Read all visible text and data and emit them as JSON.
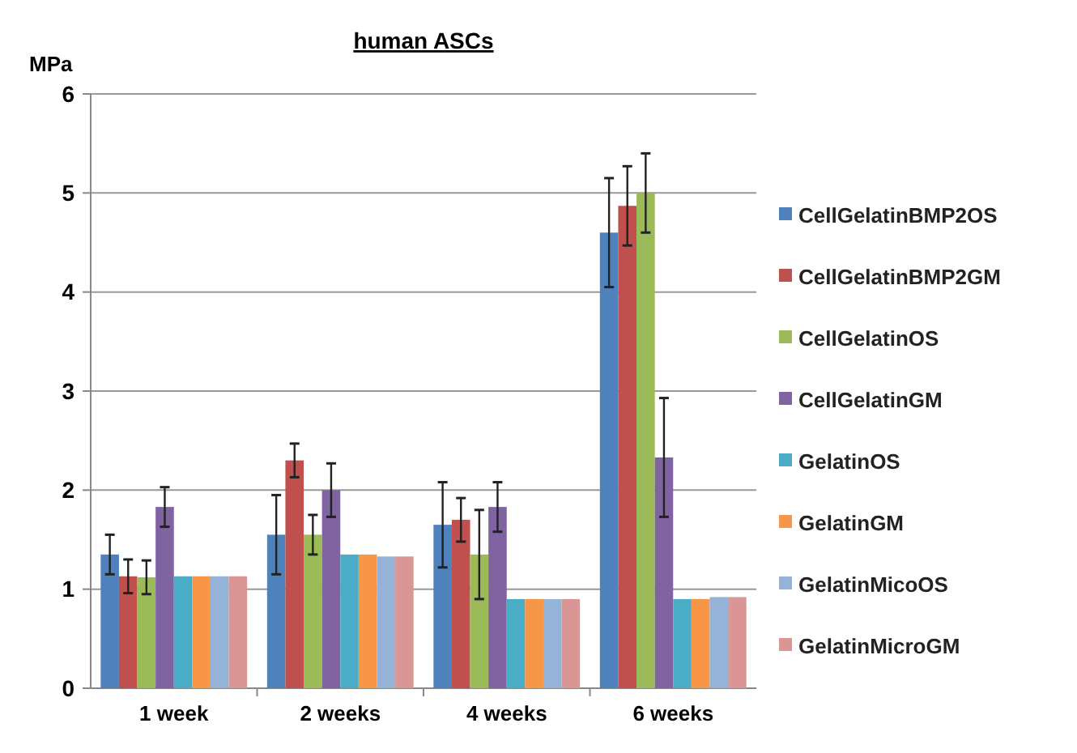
{
  "chart_data": {
    "type": "bar",
    "title": "human ASCs",
    "ylabel": "MPa",
    "categories": [
      "1 week",
      "2 weeks",
      "4 weeks",
      "6 weeks"
    ],
    "ylim": [
      0,
      6
    ],
    "yticks": [
      0,
      1,
      2,
      3,
      4,
      5,
      6
    ],
    "grid": "y",
    "legend": "right",
    "series": [
      {
        "name": "CellGelatinBMP2OS",
        "color": "#4f81bd",
        "values": [
          1.35,
          1.55,
          1.65,
          4.6
        ],
        "errors": [
          0.2,
          0.4,
          0.43,
          0.55
        ]
      },
      {
        "name": "CellGelatinBMP2GM",
        "color": "#c0504d",
        "values": [
          1.13,
          2.3,
          1.7,
          4.87
        ],
        "errors": [
          0.17,
          0.17,
          0.22,
          0.4
        ]
      },
      {
        "name": "CellGelatinOS",
        "color": "#9bbb59",
        "values": [
          1.12,
          1.55,
          1.35,
          5.0
        ],
        "errors": [
          0.17,
          0.2,
          0.45,
          0.4
        ]
      },
      {
        "name": "CellGelatinGM",
        "color": "#8064a2",
        "values": [
          1.83,
          2.0,
          1.83,
          2.33
        ],
        "errors": [
          0.2,
          0.27,
          0.25,
          0.6
        ]
      },
      {
        "name": "GelatinOS",
        "color": "#4bacc6",
        "values": [
          1.13,
          1.35,
          0.9,
          0.9
        ]
      },
      {
        "name": "GelatinGM",
        "color": "#f79646",
        "values": [
          1.13,
          1.35,
          0.9,
          0.9
        ]
      },
      {
        "name": "GelatinMicoOS",
        "color": "#95b3d7",
        "values": [
          1.13,
          1.33,
          0.9,
          0.92
        ]
      },
      {
        "name": "GelatinMicroGM",
        "color": "#d99694",
        "values": [
          1.13,
          1.33,
          0.9,
          0.92
        ]
      }
    ]
  }
}
